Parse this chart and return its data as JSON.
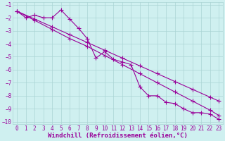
{
  "bg_color": "#cff0f0",
  "grid_color": "#aad4d4",
  "line_color": "#990099",
  "marker": "+",
  "markersize": 4,
  "linewidth": 0.8,
  "markeredgewidth": 0.8,
  "xlabel": "Windchill (Refroidissement éolien,°C)",
  "xlabel_fontsize": 6.5,
  "tick_fontsize": 5.5,
  "xlim": [
    -0.5,
    23.5
  ],
  "ylim": [
    -10.2,
    -0.8
  ],
  "xticks": [
    0,
    1,
    2,
    3,
    4,
    5,
    6,
    7,
    8,
    9,
    10,
    11,
    12,
    13,
    14,
    15,
    16,
    17,
    18,
    19,
    20,
    21,
    22,
    23
  ],
  "yticks": [
    -10,
    -9,
    -8,
    -7,
    -6,
    -5,
    -4,
    -3,
    -2,
    -1
  ],
  "series1_x": [
    0,
    1,
    2,
    3,
    4,
    5,
    6,
    7,
    8,
    9,
    10,
    11,
    12,
    13,
    14,
    15,
    16,
    17,
    18,
    19,
    20,
    21,
    22,
    23
  ],
  "series1_y": [
    -1.5,
    -2.0,
    -1.8,
    -2.0,
    -2.0,
    -1.4,
    -2.1,
    -2.8,
    -3.6,
    -5.1,
    -4.6,
    -5.2,
    -5.4,
    -5.6,
    -7.3,
    -8.0,
    -8.0,
    -8.5,
    -8.6,
    -9.0,
    -9.3,
    -9.3,
    -9.4,
    -9.8
  ],
  "series2_x": [
    0,
    2,
    4,
    6,
    8,
    10,
    12,
    14,
    16,
    18,
    20,
    22,
    23
  ],
  "series2_y": [
    -1.5,
    -2.1,
    -2.7,
    -3.3,
    -3.9,
    -4.5,
    -5.1,
    -5.7,
    -6.3,
    -6.9,
    -7.5,
    -8.1,
    -8.4
  ],
  "series3_x": [
    0,
    2,
    4,
    6,
    8,
    10,
    12,
    14,
    16,
    18,
    20,
    22,
    23
  ],
  "series3_y": [
    -1.5,
    -2.2,
    -2.9,
    -3.6,
    -4.2,
    -4.9,
    -5.6,
    -6.3,
    -7.0,
    -7.7,
    -8.4,
    -9.1,
    -9.5
  ]
}
